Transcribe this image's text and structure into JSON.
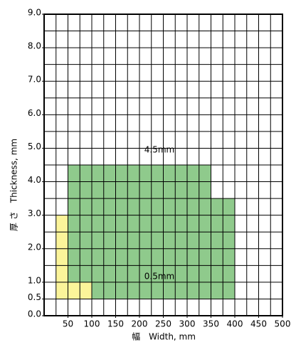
{
  "chart_data": {
    "type": "region",
    "x_label": "幅　Width, mm",
    "y_label": "厚 さ　Thickness, mm",
    "xlim": [
      0,
      500
    ],
    "ylim": [
      0,
      9
    ],
    "xticks": [
      50,
      100,
      150,
      200,
      250,
      300,
      350,
      400,
      450,
      500
    ],
    "yticks": [
      {
        "value": 0,
        "label": "0.0"
      },
      0.5,
      {
        "value": 1,
        "label": "1.0"
      },
      {
        "value": 2,
        "label": "2.0"
      },
      {
        "value": 3,
        "label": "3.0"
      },
      {
        "value": 4,
        "label": "4.0"
      },
      {
        "value": 5,
        "label": "5.0"
      },
      {
        "value": 6,
        "label": "6.0"
      },
      {
        "value": 7,
        "label": "7.0"
      },
      {
        "value": 8,
        "label": "8.0"
      },
      {
        "value": 9,
        "label": "9.0"
      }
    ],
    "xgrid": [
      0,
      25,
      50,
      75,
      100,
      125,
      150,
      175,
      200,
      225,
      250,
      275,
      300,
      325,
      350,
      375,
      400,
      425,
      450,
      475,
      500
    ],
    "ygrid": [
      0,
      0.5,
      1,
      1.5,
      2,
      2.5,
      3,
      3.5,
      4,
      4.5,
      5,
      5.5,
      6,
      6.5,
      7,
      7.5,
      8,
      8.5,
      9
    ],
    "series": [
      {
        "color": "#8fca8c",
        "x": [
          50,
          350,
          350,
          400,
          400,
          100,
          100,
          50
        ],
        "values": [
          4.5,
          4.5,
          3.5,
          3.5,
          0.5,
          0.5,
          1,
          1
        ]
      },
      {
        "color": "#fbf49a",
        "x": [
          25,
          50,
          50,
          100,
          100,
          25
        ],
        "values": [
          3,
          3,
          1,
          1,
          0.5,
          0.5
        ]
      }
    ],
    "annotations": [
      "4.5mm",
      "0.5mm"
    ]
  }
}
